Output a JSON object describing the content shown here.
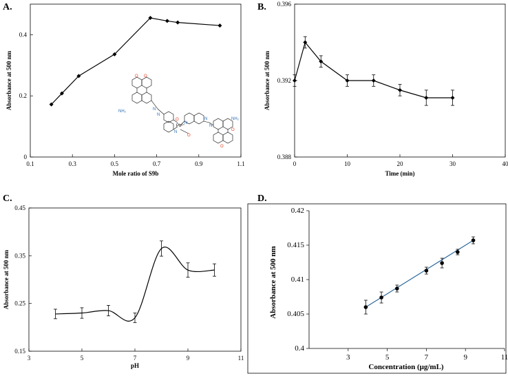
{
  "chart_data": [
    {
      "id": "A",
      "panel_label": "A.",
      "type": "line",
      "title": "",
      "xlabel": "Mole ratio of S9b",
      "ylabel": "Absorbance at 500 nm",
      "xlim": [
        0.1,
        1.1
      ],
      "ylim": [
        0,
        0.5
      ],
      "x_ticks": [
        0.1,
        0.3,
        0.5,
        0.7,
        0.9,
        1.1
      ],
      "x_tick_labels": [
        "0.1",
        "0.3",
        "0.5",
        "0.7",
        "0.9",
        "1.1"
      ],
      "y_ticks": [
        0,
        0.2,
        0.4
      ],
      "y_tick_labels": [
        "0",
        "0.2",
        "0.4"
      ],
      "series": [
        {
          "name": "S9b",
          "x": [
            0.2,
            0.25,
            0.33,
            0.5,
            0.67,
            0.75,
            0.8,
            1.0
          ],
          "y": [
            0.172,
            0.208,
            0.265,
            0.336,
            0.455,
            0.445,
            0.44,
            0.43
          ]
        }
      ],
      "annotation": {
        "description_labels": [
          "O",
          "O",
          "NH₂",
          "N",
          "N",
          "O",
          "N",
          "Pb²⁺",
          "N",
          "O",
          "N",
          "N",
          "NH₂",
          "O",
          "O"
        ]
      }
    },
    {
      "id": "B",
      "panel_label": "B.",
      "type": "line",
      "title": "",
      "xlabel": "Time (min)",
      "ylabel": "Absorbance  at 500 nm",
      "xlim": [
        0,
        40
      ],
      "ylim": [
        0.388,
        0.396
      ],
      "x_ticks": [
        0,
        10,
        20,
        30,
        40
      ],
      "x_tick_labels": [
        "0",
        "10",
        "20",
        "30",
        "40"
      ],
      "y_ticks": [
        0.388,
        0.392,
        0.396
      ],
      "y_tick_labels": [
        "0.388",
        "0.392",
        "0.396"
      ],
      "series": [
        {
          "name": "S9b",
          "x": [
            0,
            2,
            5,
            10,
            15,
            20,
            25,
            30
          ],
          "y": [
            0.392,
            0.394,
            0.393,
            0.392,
            0.392,
            0.3915,
            0.3911,
            0.3911
          ],
          "err": [
            0.0003,
            0.0003,
            0.0003,
            0.0003,
            0.0003,
            0.0003,
            0.0004,
            0.0004
          ]
        }
      ]
    },
    {
      "id": "C",
      "panel_label": "C.",
      "type": "line",
      "title": "",
      "xlabel": "pH",
      "ylabel": "Absorbance at 500 nm",
      "xlim": [
        3,
        11
      ],
      "ylim": [
        0.15,
        0.45
      ],
      "x_ticks": [
        3,
        5,
        7,
        9,
        11
      ],
      "x_tick_labels": [
        "3",
        "5",
        "7",
        "9",
        "11"
      ],
      "y_ticks": [
        0.15,
        0.25,
        0.35,
        0.45
      ],
      "y_tick_labels": [
        "0.15",
        "0.25",
        "0.35",
        "0.45"
      ],
      "series": [
        {
          "name": "S9b",
          "x": [
            4,
            5,
            6,
            7,
            8,
            9,
            10
          ],
          "y": [
            0.228,
            0.23,
            0.235,
            0.22,
            0.365,
            0.32,
            0.32
          ],
          "err": [
            0.01,
            0.011,
            0.011,
            0.01,
            0.016,
            0.015,
            0.013
          ]
        }
      ]
    },
    {
      "id": "D",
      "panel_label": "D.",
      "type": "scatter",
      "title": "",
      "xlabel": "Concentration  (μg/mL)",
      "ylabel": "Absorbance  at 500 nm",
      "xlim": [
        1,
        11
      ],
      "ylim": [
        0.4,
        0.42
      ],
      "x_ticks": [
        3,
        5,
        7,
        9,
        11
      ],
      "x_tick_labels": [
        "3",
        "5",
        "7",
        "9",
        "11"
      ],
      "y_ticks": [
        0.4,
        0.405,
        0.41,
        0.415,
        0.42
      ],
      "y_tick_labels": [
        "0.4",
        "0.405",
        "0.41",
        "0.415",
        "0.42"
      ],
      "series": [
        {
          "name": "S9b",
          "x": [
            3.9,
            4.7,
            5.5,
            7.0,
            7.8,
            8.6,
            9.4
          ],
          "y": [
            0.406,
            0.4074,
            0.4087,
            0.4113,
            0.4124,
            0.414,
            0.4157
          ],
          "err": [
            0.001,
            0.0008,
            0.0005,
            0.0005,
            0.0007,
            0.0004,
            0.0005
          ]
        }
      ],
      "trendline": {
        "x": [
          3.9,
          9.4
        ],
        "y": [
          0.406,
          0.4157
        ],
        "color": "#2e6a9c"
      }
    }
  ]
}
